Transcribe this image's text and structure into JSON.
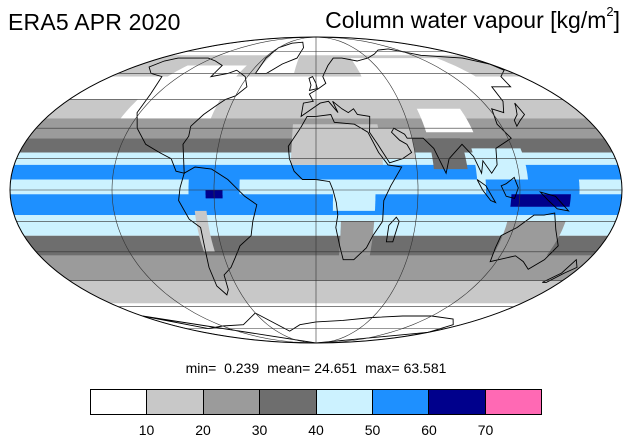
{
  "header": {
    "left_title": "ERA5 APR 2020",
    "right_title": "Column water vapour [kg/m",
    "right_title_sup": "2",
    "right_title_close": "]"
  },
  "stats": {
    "min_label": "min=",
    "min_value": "0.239",
    "mean_label": "mean=",
    "mean_value": "24.651",
    "max_label": "max=",
    "max_value": "63.581"
  },
  "legend": {
    "bins": [
      {
        "range": "0-10",
        "color": "#ffffff"
      },
      {
        "range": "10-20",
        "color": "#c8c8c8"
      },
      {
        "range": "20-30",
        "color": "#9b9b9b"
      },
      {
        "range": "30-40",
        "color": "#6e6e6e"
      },
      {
        "range": "40-50",
        "color": "#ccf2ff"
      },
      {
        "range": "50-60",
        "color": "#1e90ff"
      },
      {
        "range": "60-70",
        "color": "#00008c"
      },
      {
        "range": "70+",
        "color": "#ff69b4"
      }
    ],
    "ticks": [
      "10",
      "20",
      "30",
      "40",
      "50",
      "60",
      "70"
    ]
  },
  "map": {
    "projection": "mollweide",
    "bands": [
      {
        "lat": [
          72,
          90
        ],
        "level": 0
      },
      {
        "lat": [
          58,
          72
        ],
        "level": 1
      },
      {
        "lat": [
          45,
          58
        ],
        "level": 0
      },
      {
        "lat": [
          35,
          45
        ],
        "level": 1
      },
      {
        "lat": [
          25,
          35
        ],
        "level": 2
      },
      {
        "lat": [
          18,
          25
        ],
        "level": 3
      },
      {
        "lat": [
          12,
          18
        ],
        "level": 4
      },
      {
        "lat": [
          5,
          12
        ],
        "level": 5
      },
      {
        "lat": [
          -2,
          5
        ],
        "level": 4
      },
      {
        "lat": [
          -12,
          -2
        ],
        "level": 5
      },
      {
        "lat": [
          -22,
          -12
        ],
        "level": 4
      },
      {
        "lat": [
          -32,
          -22
        ],
        "level": 3
      },
      {
        "lat": [
          -45,
          -32
        ],
        "level": 2
      },
      {
        "lat": [
          -58,
          -45
        ],
        "level": 1
      },
      {
        "lat": [
          -90,
          -58
        ],
        "level": 0
      }
    ],
    "blobs": [
      {
        "name": "sahara",
        "level": 1,
        "lon": [
          -15,
          40
        ],
        "lat": [
          12,
          32
        ]
      },
      {
        "name": "arabia",
        "level": 1,
        "lon": [
          35,
          60
        ],
        "lat": [
          15,
          30
        ]
      },
      {
        "name": "tibet",
        "level": 0,
        "lon": [
          70,
          100
        ],
        "lat": [
          28,
          40
        ]
      },
      {
        "name": "siberia",
        "level": 0,
        "lon": [
          40,
          140
        ],
        "lat": [
          45,
          70
        ]
      },
      {
        "name": "north-america",
        "level": 0,
        "lon": [
          -130,
          -70
        ],
        "lat": [
          35,
          65
        ]
      },
      {
        "name": "india",
        "level": 3,
        "lon": [
          70,
          90
        ],
        "lat": [
          10,
          25
        ]
      },
      {
        "name": "southeast-asia",
        "level": 4,
        "lon": [
          95,
          125
        ],
        "lat": [
          0,
          20
        ]
      },
      {
        "name": "maritime-continent",
        "level": 5,
        "lon": [
          100,
          155
        ],
        "lat": [
          -10,
          5
        ]
      },
      {
        "name": "indonesia-max",
        "level": 6,
        "lon": [
          115,
          150
        ],
        "lat": [
          -8,
          -2
        ]
      },
      {
        "name": "amazon",
        "level": 5,
        "lon": [
          -75,
          -45
        ],
        "lat": [
          -10,
          5
        ]
      },
      {
        "name": "amazon-max",
        "level": 6,
        "lon": [
          -65,
          -55
        ],
        "lat": [
          -4,
          0
        ]
      },
      {
        "name": "central-africa",
        "level": 4,
        "lon": [
          10,
          35
        ],
        "lat": [
          -10,
          5
        ]
      },
      {
        "name": "australia",
        "level": 2,
        "lon": [
          115,
          150
        ],
        "lat": [
          -35,
          -15
        ]
      },
      {
        "name": "southern-africa",
        "level": 2,
        "lon": [
          15,
          35
        ],
        "lat": [
          -35,
          -15
        ]
      },
      {
        "name": "andes",
        "level": 1,
        "lon": [
          -72,
          -65
        ],
        "lat": [
          -30,
          -10
        ]
      },
      {
        "name": "greenland",
        "level": 0,
        "lon": [
          -55,
          -20
        ],
        "lat": [
          60,
          82
        ]
      },
      {
        "name": "antarctica",
        "level": 0,
        "lon": [
          -180,
          180
        ],
        "lat": [
          -90,
          -63
        ]
      }
    ],
    "grid": {
      "lon_step": 60,
      "lat_step": 15
    }
  }
}
